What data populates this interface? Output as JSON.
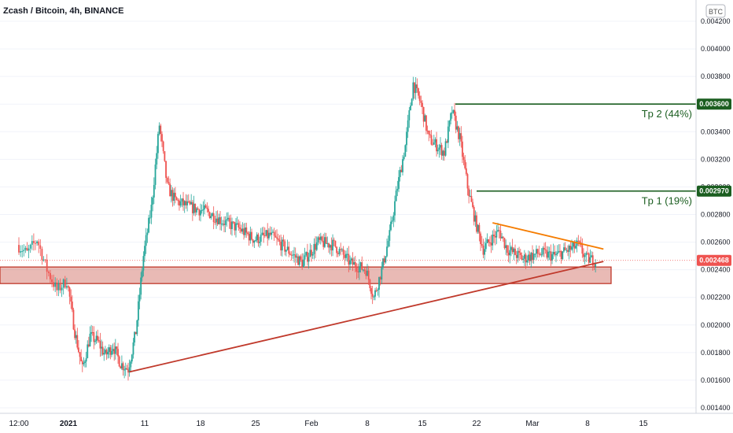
{
  "header": {
    "title": "Zcash / Bitcoin, 4h, BINANCE"
  },
  "currency_badge": "BTC",
  "colors": {
    "up": "#26a69a",
    "down": "#ef5350",
    "zone": "#c0392b",
    "trendline": "#c0392b",
    "wedge_top": "#f57c00",
    "target": "#1b5e20",
    "price_tag": "#ef5350"
  },
  "chart_data": {
    "type": "candlestick",
    "symbol": "Zcash / Bitcoin, 4h, BINANCE",
    "ylim": [
      0.0014,
      0.0042
    ],
    "y_ticks": [
      "0.004200",
      "0.004000",
      "0.003800",
      "0.003600",
      "0.003400",
      "0.003200",
      "0.003000",
      "0.002800",
      "0.002600",
      "0.002400",
      "0.002200",
      "0.002000",
      "0.001800",
      "0.001600",
      "0.001400"
    ],
    "x_ticks": [
      "12:00",
      "2021",
      "11",
      "18",
      "25",
      "Feb",
      "8",
      "15",
      "22",
      "Mar",
      "8",
      "15"
    ],
    "price_path": [
      {
        "d": "Dec 27",
        "p": 0.00258
      },
      {
        "d": "Dec 28",
        "p": 0.00252
      },
      {
        "d": "Dec 29",
        "p": 0.00262
      },
      {
        "d": "Dec 30",
        "p": 0.0024
      },
      {
        "d": "Dec 31",
        "p": 0.00225
      },
      {
        "d": "Jan 1",
        "p": 0.00232
      },
      {
        "d": "Jan 2",
        "p": 0.00195
      },
      {
        "d": "Jan 3",
        "p": 0.00168
      },
      {
        "d": "Jan 4",
        "p": 0.00192
      },
      {
        "d": "Jan 5",
        "p": 0.00188
      },
      {
        "d": "Jan 6",
        "p": 0.00178
      },
      {
        "d": "Jan 7",
        "p": 0.00185
      },
      {
        "d": "Jan 8",
        "p": 0.00172
      },
      {
        "d": "Jan 9",
        "p": 0.00168
      },
      {
        "d": "Jan 10",
        "p": 0.00195
      },
      {
        "d": "Jan 11",
        "p": 0.0025
      },
      {
        "d": "Jan 12",
        "p": 0.00285
      },
      {
        "d": "Jan 13",
        "p": 0.00345
      },
      {
        "d": "Jan 14",
        "p": 0.003
      },
      {
        "d": "Jan 15",
        "p": 0.0029
      },
      {
        "d": "Jan 17",
        "p": 0.00285
      },
      {
        "d": "Jan 19",
        "p": 0.00282
      },
      {
        "d": "Jan 21",
        "p": 0.00275
      },
      {
        "d": "Jan 23",
        "p": 0.0027
      },
      {
        "d": "Jan 25",
        "p": 0.00262
      },
      {
        "d": "Jan 27",
        "p": 0.00265
      },
      {
        "d": "Jan 29",
        "p": 0.00255
      },
      {
        "d": "Jan 31",
        "p": 0.00245
      },
      {
        "d": "Feb 2",
        "p": 0.0026
      },
      {
        "d": "Feb 4",
        "p": 0.00258
      },
      {
        "d": "Feb 6",
        "p": 0.00245
      },
      {
        "d": "Feb 8",
        "p": 0.0024
      },
      {
        "d": "Feb 9",
        "p": 0.0022
      },
      {
        "d": "Feb 10",
        "p": 0.0024
      },
      {
        "d": "Feb 11",
        "p": 0.00265
      },
      {
        "d": "Feb 12",
        "p": 0.003
      },
      {
        "d": "Feb 13",
        "p": 0.0033
      },
      {
        "d": "Feb 14",
        "p": 0.00375
      },
      {
        "d": "Feb 15",
        "p": 0.0036
      },
      {
        "d": "Feb 16",
        "p": 0.00335
      },
      {
        "d": "Feb 17",
        "p": 0.0033
      },
      {
        "d": "Feb 18",
        "p": 0.00325
      },
      {
        "d": "Feb 19",
        "p": 0.00355
      },
      {
        "d": "Feb 20",
        "p": 0.00335
      },
      {
        "d": "Feb 21",
        "p": 0.003
      },
      {
        "d": "Feb 22",
        "p": 0.00275
      },
      {
        "d": "Feb 23",
        "p": 0.00255
      },
      {
        "d": "Feb 24",
        "p": 0.00262
      },
      {
        "d": "Feb 25",
        "p": 0.00268
      },
      {
        "d": "Feb 26",
        "p": 0.00255
      },
      {
        "d": "Feb 28",
        "p": 0.00248
      },
      {
        "d": "Mar 2",
        "p": 0.00252
      },
      {
        "d": "Mar 4",
        "p": 0.0025
      },
      {
        "d": "Mar 6",
        "p": 0.00255
      },
      {
        "d": "Mar 7",
        "p": 0.00258
      },
      {
        "d": "Mar 8",
        "p": 0.00248
      },
      {
        "d": "Mar 9",
        "p": 0.002468
      }
    ],
    "support_zone": [
      0.0023,
      0.00242
    ],
    "trendline": [
      {
        "d": "Jan 9",
        "p": 0.00166
      },
      {
        "d": "Mar 10",
        "p": 0.00246
      }
    ],
    "wedge_top": [
      {
        "d": "Feb 24",
        "p": 0.00274
      },
      {
        "d": "Mar 10",
        "p": 0.00255
      }
    ],
    "current_price": {
      "value": 0.002468,
      "label": "0.002468"
    },
    "targets": [
      {
        "label": "Tp 2 (44%)",
        "price": 0.0036,
        "price_label": "0.003600"
      },
      {
        "label": "Tp 1 (19%)",
        "price": 0.00297,
        "price_label": "0.002970"
      }
    ]
  }
}
